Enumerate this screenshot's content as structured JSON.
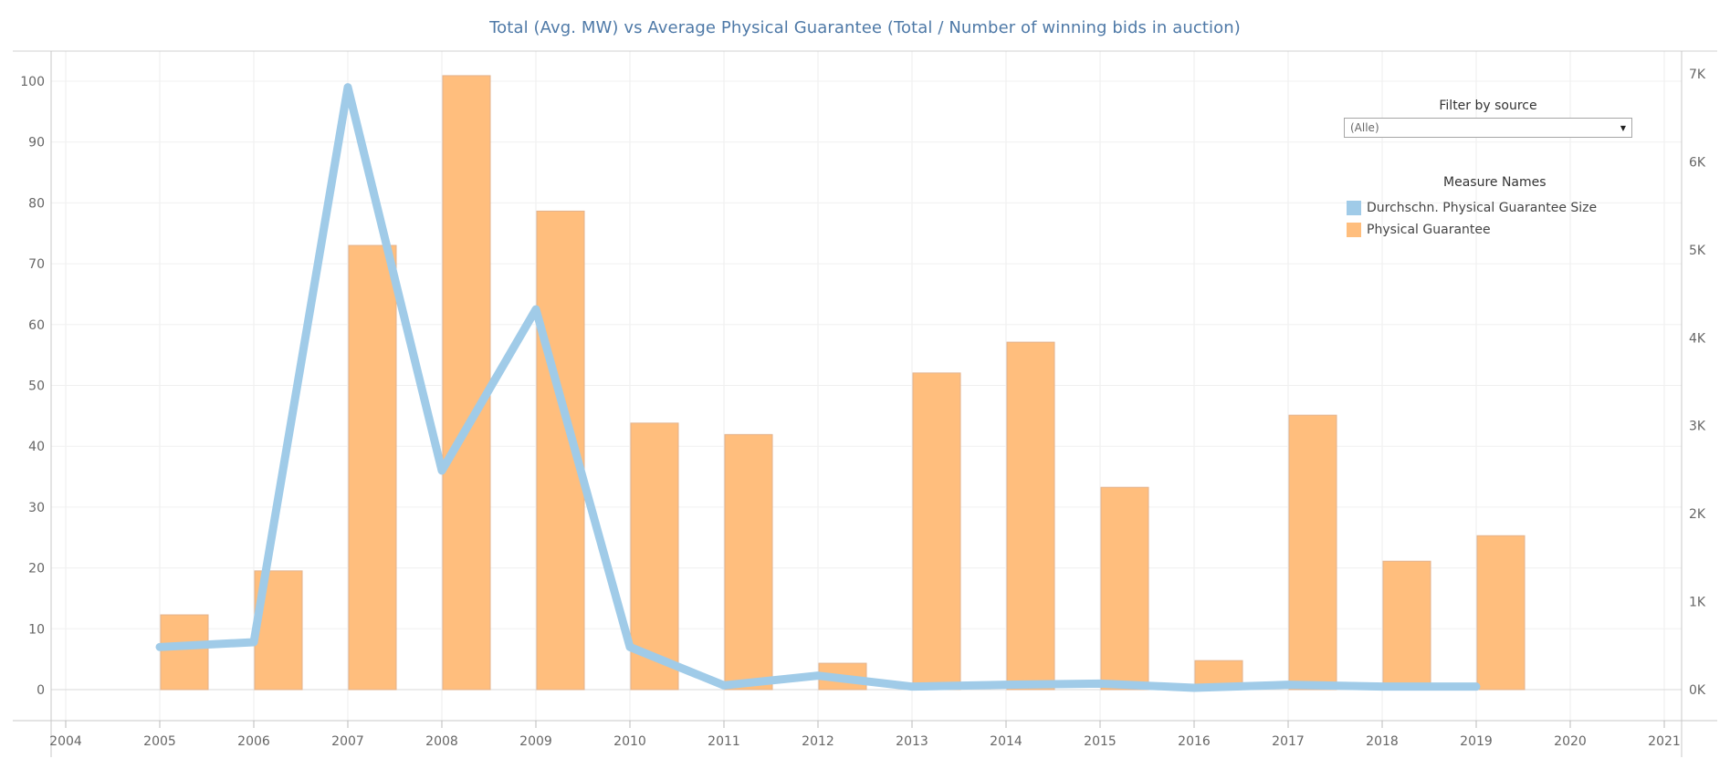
{
  "chart_data": {
    "type": "bar+line",
    "title": "Total (Avg. MW) vs Average Physical Guarantee (Total / Number of winning bids in auction)",
    "x_ticks": [
      "2004",
      "2005",
      "2006",
      "2007",
      "2008",
      "2009",
      "2010",
      "2011",
      "2012",
      "2013",
      "2014",
      "2015",
      "2016",
      "2017",
      "2018",
      "2019",
      "2020",
      "2021"
    ],
    "xlim": [
      2004,
      2021
    ],
    "bars": {
      "name": "Physical Guarantee",
      "axis": "right",
      "color": "#ffbe7d",
      "x": [
        "2005",
        "2006",
        "2007",
        "2008",
        "2009",
        "2010",
        "2011",
        "2012",
        "2013",
        "2014",
        "2015",
        "2016",
        "2017",
        "2018",
        "2019"
      ],
      "values": [
        850,
        1350,
        5050,
        6980,
        5440,
        3030,
        2900,
        300,
        3600,
        3950,
        2300,
        330,
        3120,
        1460,
        1750
      ]
    },
    "line": {
      "name": "Durchschn. Physical Guarantee Size",
      "axis": "left",
      "color": "#a0cbe8",
      "x": [
        "2005",
        "2006",
        "2007",
        "2008",
        "2009",
        "2010",
        "2011",
        "2012",
        "2013",
        "2014",
        "2015",
        "2016",
        "2017",
        "2018",
        "2019"
      ],
      "values": [
        7,
        7.8,
        99,
        36,
        62.5,
        7,
        0.7,
        2.3,
        0.5,
        0.8,
        1,
        0.3,
        0.8,
        0.5,
        0.5
      ]
    },
    "left_axis": {
      "ylim": [
        0,
        105
      ],
      "ticks": [
        "0",
        "10",
        "20",
        "30",
        "40",
        "50",
        "60",
        "70",
        "80",
        "90",
        "100"
      ]
    },
    "right_axis": {
      "ylim": [
        0,
        7350
      ],
      "ticks": [
        "0K",
        "1K",
        "2K",
        "3K",
        "4K",
        "5K",
        "6K",
        "7K"
      ]
    },
    "grid": true,
    "legend": {
      "title": "Measure Names",
      "placement": "top-right",
      "entries": [
        {
          "label": "Durchschn. Physical Guarantee Size",
          "color": "#a0cbe8"
        },
        {
          "label": "Physical Guarantee",
          "color": "#ffbe7d"
        }
      ]
    }
  },
  "filter": {
    "label": "Filter by source",
    "value": "(Alle)"
  }
}
